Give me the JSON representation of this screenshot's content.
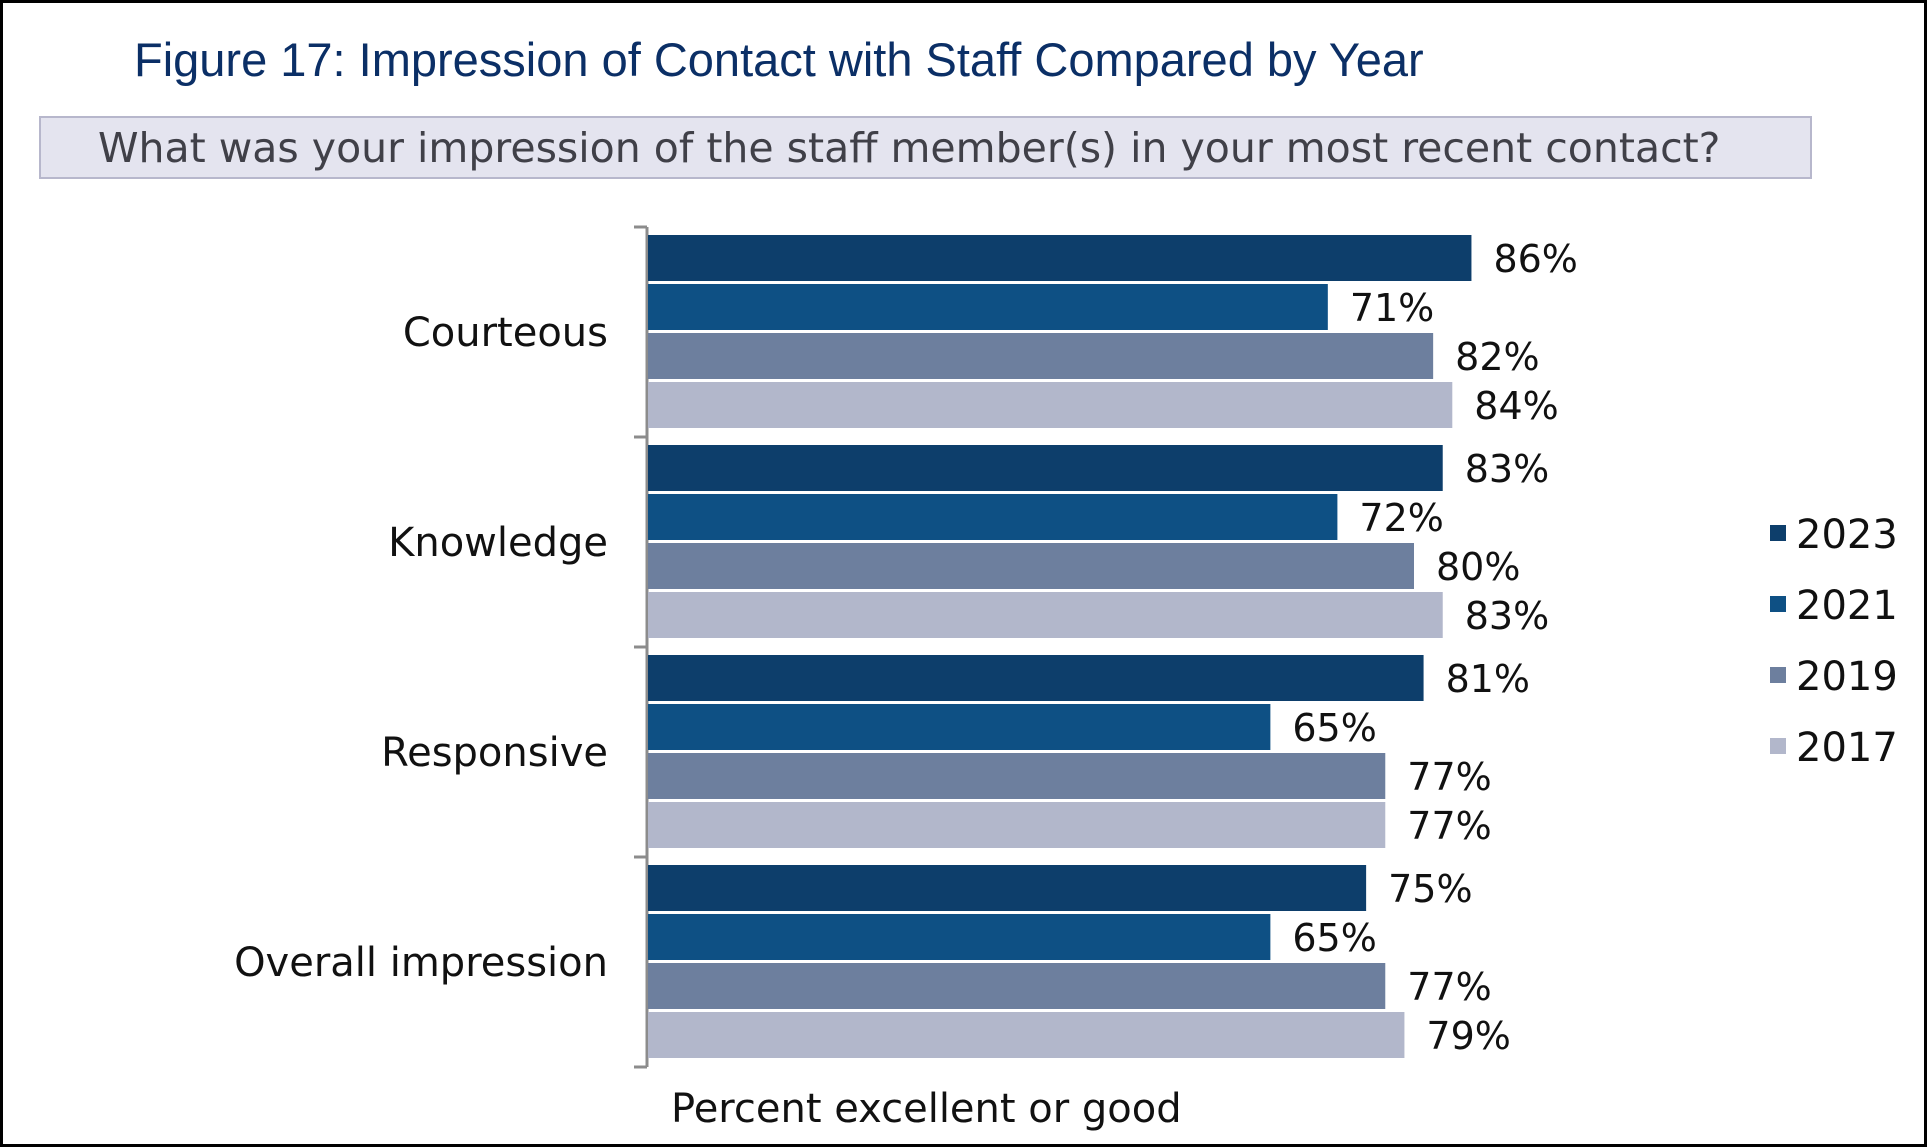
{
  "figure": {
    "title": "Figure 17: Impression of Contact with Staff Compared by Year",
    "question": "What was your impression of the staff member(s) in your most recent contact?"
  },
  "chart_data": {
    "type": "bar",
    "orientation": "horizontal",
    "title": "Figure 17: Impression of Contact with Staff Compared by Year",
    "subtitle": "What was your impression of the staff member(s) in your most recent contact?",
    "xlabel": "Percent excellent or good",
    "ylabel": "",
    "xlim": [
      0,
      100
    ],
    "grid": false,
    "legend_position": "right",
    "categories": [
      "Courteous",
      "Knowledge",
      "Responsive",
      "Overall impression"
    ],
    "series": [
      {
        "name": "2023",
        "color": "#0d3e6b",
        "values": [
          86,
          83,
          81,
          75
        ]
      },
      {
        "name": "2021",
        "color": "#0e5084",
        "values": [
          71,
          72,
          65,
          65
        ]
      },
      {
        "name": "2019",
        "color": "#6d7f9e",
        "values": [
          82,
          80,
          77,
          77
        ]
      },
      {
        "name": "2017",
        "color": "#b2b7cb",
        "values": [
          84,
          83,
          77,
          79
        ]
      }
    ],
    "value_suffix": "%"
  }
}
